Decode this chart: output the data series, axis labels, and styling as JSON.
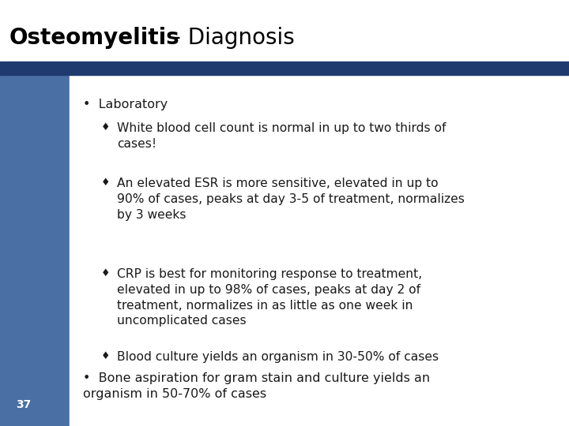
{
  "title_bold": "Osteomyelitis",
  "title_normal": " - Diagnosis",
  "bg_color": "#ffffff",
  "header_bar_color": "#1e3a6e",
  "left_bar_color": "#4a6fa5",
  "slide_number": "37",
  "bullet1": "Laboratory",
  "sub_bullets": [
    "White blood cell count is normal in up to two thirds of\ncases!",
    "An elevated ESR is more sensitive, elevated in up to\n90% of cases, peaks at day 3-5 of treatment, normalizes\nby 3 weeks",
    "CRP is best for monitoring response to treatment,\nelevated in up to 98% of cases, peaks at day 2 of\ntreatment, normalizes in as little as one week in\nuncomplicated cases",
    "Blood culture yields an organism in 30-50% of cases"
  ],
  "bullet2": "Bone aspiration for gram stain and culture yields an\norganism in 50-70% of cases",
  "text_color": "#1a1a1a",
  "title_color": "#000000",
  "body_font_size": 11.2,
  "title_font_size": 20,
  "sub_bullet_char": "♦"
}
